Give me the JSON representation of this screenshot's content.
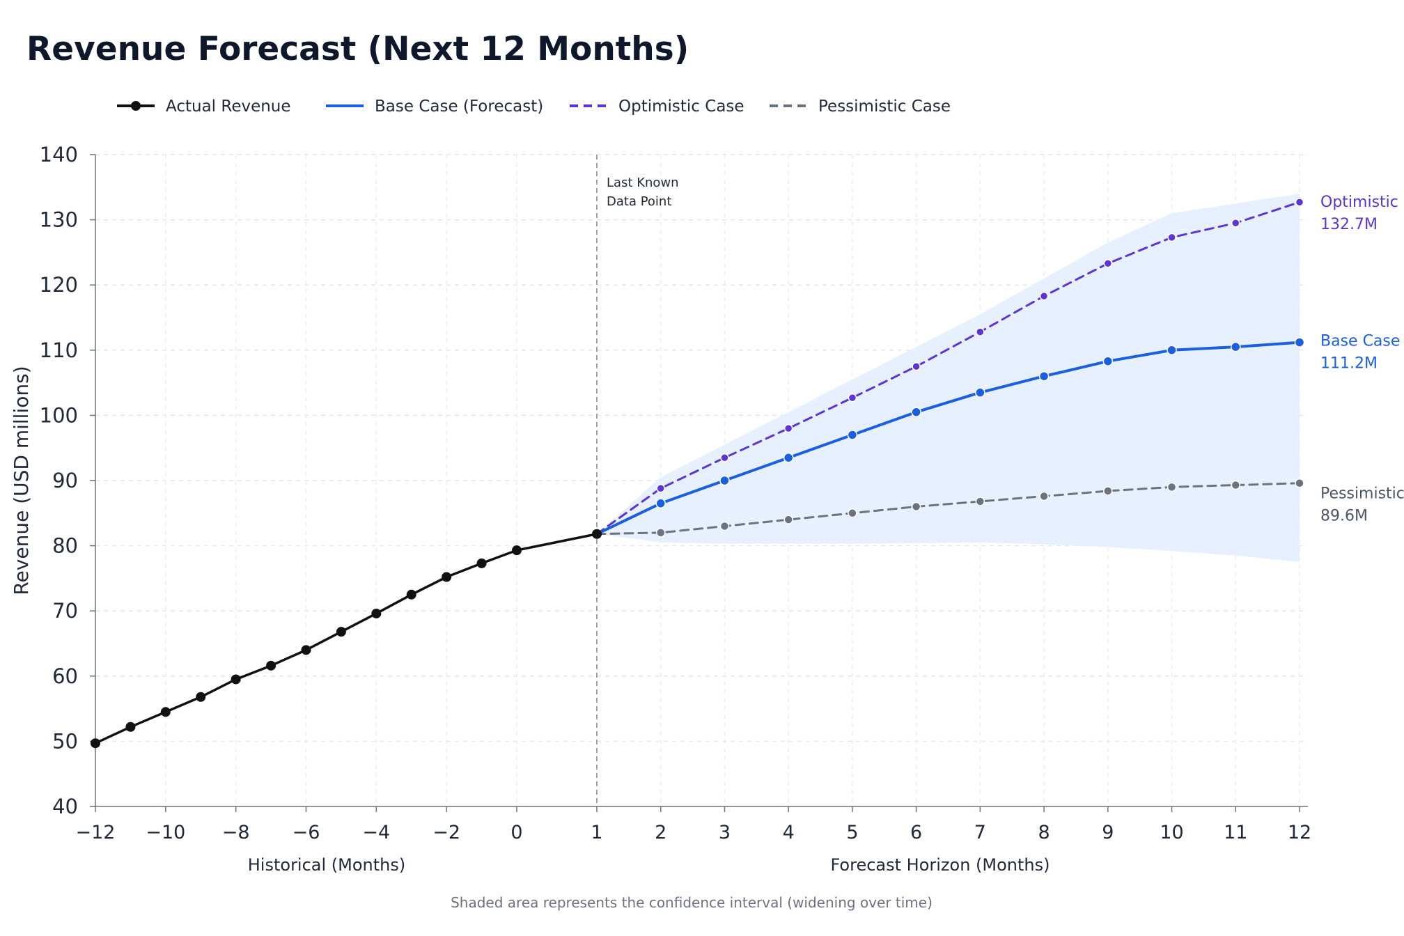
{
  "chart_data": {
    "type": "line",
    "title": "Revenue Forecast (Next 12 Months)",
    "ylabel": "Revenue (USD millions)",
    "xlabel_historical": "Historical (Months)",
    "xlabel_forecast": "Forecast Horizon (Months)",
    "ylim": [
      40,
      140
    ],
    "yticks": [
      "40",
      "50",
      "60",
      "70",
      "80",
      "90",
      "100",
      "110",
      "120",
      "130",
      "140"
    ],
    "historical_ticks": [
      {
        "value": -12,
        "label": "−12"
      },
      {
        "value": -10,
        "label": "−10"
      },
      {
        "value": -8,
        "label": "−8"
      },
      {
        "value": -6,
        "label": "−6"
      },
      {
        "value": -4,
        "label": "−4"
      },
      {
        "value": -2,
        "label": "−2"
      },
      {
        "value": 0,
        "label": "0"
      }
    ],
    "forecast_ticks": [
      {
        "value": 1,
        "label": "1"
      },
      {
        "value": 2,
        "label": "2"
      },
      {
        "value": 3,
        "label": "3"
      },
      {
        "value": 4,
        "label": "4"
      },
      {
        "value": 5,
        "label": "5"
      },
      {
        "value": 6,
        "label": "6"
      },
      {
        "value": 7,
        "label": "7"
      },
      {
        "value": 8,
        "label": "8"
      },
      {
        "value": 9,
        "label": "9"
      },
      {
        "value": 10,
        "label": "10"
      },
      {
        "value": 11,
        "label": "11"
      },
      {
        "value": 12,
        "label": "12"
      }
    ],
    "grid": true,
    "legend_position": "top-left",
    "legend": [
      {
        "label": "Actual Revenue",
        "style": "solid-marker",
        "color": "#111111"
      },
      {
        "label": "Base Case (Forecast)",
        "style": "solid",
        "color": "#1a5fe0"
      },
      {
        "label": "Optimistic Case",
        "style": "dashed",
        "color": "#5b35d5"
      },
      {
        "label": "Pessimistic Case",
        "style": "dashed",
        "color": "#6b7280"
      }
    ],
    "series": [
      {
        "name": "Actual Revenue",
        "color": "#111111",
        "x": [
          -12,
          -11,
          -10,
          -9,
          -8,
          -7,
          -6,
          -5,
          -4,
          -3,
          -2,
          -1,
          0,
          1
        ],
        "values": [
          49.7,
          52.2,
          54.5,
          56.8,
          59.5,
          61.6,
          64.0,
          66.8,
          69.6,
          72.5,
          75.2,
          77.3,
          79.3,
          81.8
        ]
      },
      {
        "name": "Base Case (Forecast)",
        "color": "#1a5fe0",
        "x": [
          1,
          2,
          3,
          4,
          5,
          6,
          7,
          8,
          9,
          10,
          11,
          12
        ],
        "values": [
          81.8,
          86.5,
          90.0,
          93.5,
          97.0,
          100.5,
          103.5,
          106.0,
          108.3,
          110.0,
          110.5,
          111.2
        ]
      },
      {
        "name": "Optimistic Case",
        "color": "#5b35d5",
        "x": [
          1,
          2,
          3,
          4,
          5,
          6,
          7,
          8,
          9,
          10,
          11,
          12
        ],
        "values": [
          81.8,
          88.8,
          93.5,
          98.0,
          102.7,
          107.5,
          112.8,
          118.3,
          123.3,
          127.3,
          129.5,
          132.7
        ]
      },
      {
        "name": "Pessimistic Case",
        "color": "#6b7280",
        "x": [
          1,
          2,
          3,
          4,
          5,
          6,
          7,
          8,
          9,
          10,
          11,
          12
        ],
        "values": [
          81.8,
          82.0,
          83.0,
          84.0,
          85.0,
          86.0,
          86.8,
          87.6,
          88.4,
          89.0,
          89.3,
          89.6
        ]
      }
    ],
    "confidence_interval": {
      "x": [
        1,
        2,
        3,
        4,
        5,
        6,
        7,
        8,
        9,
        10,
        11,
        12
      ],
      "upper": [
        81.8,
        90.5,
        95.5,
        100.5,
        105.5,
        110.5,
        115.5,
        121.0,
        126.5,
        131.0,
        132.5,
        134.0
      ],
      "lower": [
        81.8,
        80.5,
        80.3,
        80.3,
        80.3,
        80.4,
        80.5,
        80.2,
        79.8,
        79.2,
        78.5,
        77.5
      ],
      "color": "#e6efff"
    },
    "divider": {
      "x": 1,
      "label_line1": "Last Known",
      "label_line2": "Data Point"
    },
    "end_labels": [
      {
        "line1": "Optimistic",
        "line2": "132.7M",
        "color": "#5b35d5",
        "y": 130.5
      },
      {
        "line1": "Base Case",
        "line2": "111.2M",
        "color": "#1a5fe0",
        "y": 109.2
      },
      {
        "line1": "Pessimistic",
        "line2": "89.6M",
        "color": "#4b5563",
        "y": 85.8
      }
    ],
    "footnote": "Shaded area represents the confidence interval (widening over time)"
  }
}
